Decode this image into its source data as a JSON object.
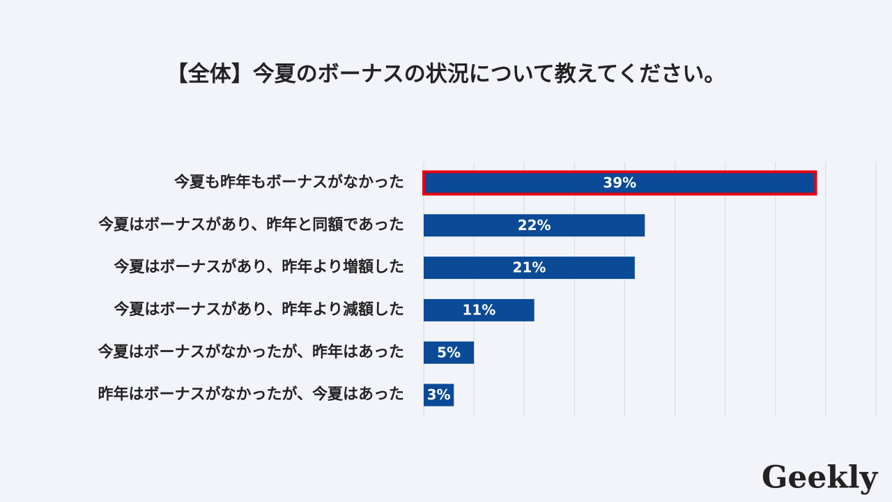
{
  "chart_data": {
    "type": "hbar",
    "title": "【全体】今夏のボーナスの状況について教えてください。",
    "categories": [
      "今夏も昨年もボーナスがなかった",
      "今夏はボーナスがあり、昨年と同額であった",
      "今夏はボーナスがあり、昨年より増額した",
      "今夏はボーナスがあり、昨年より減額した",
      "今夏はボーナスがなかったが、昨年はあった",
      "昨年はボーナスがなかったが、今夏はあった"
    ],
    "values": [
      39,
      22,
      21,
      11,
      5,
      3
    ],
    "value_labels": [
      "39%",
      "22%",
      "21%",
      "11%",
      "5%",
      "3%"
    ],
    "color": "#0b4a96",
    "highlight_index": 0,
    "highlight_color": "#e60012",
    "xlim": [
      0,
      45
    ],
    "xticks": [
      0,
      5,
      10,
      15,
      20,
      25,
      30,
      35,
      40,
      45
    ],
    "show_tick_labels": false,
    "grid": true
  },
  "logo": "Geekly"
}
